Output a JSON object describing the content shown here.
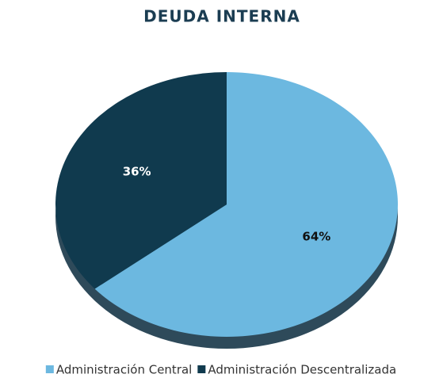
{
  "chart_data": {
    "type": "pie",
    "title": "DEUDA INTERNA",
    "categories": [
      "Administración Central",
      "Administración Descentralizada"
    ],
    "values": [
      64,
      36
    ],
    "value_labels": [
      "64%",
      "36%"
    ],
    "colors": [
      "#6cb8e0",
      "#103a4e"
    ],
    "legend": "bottom"
  }
}
